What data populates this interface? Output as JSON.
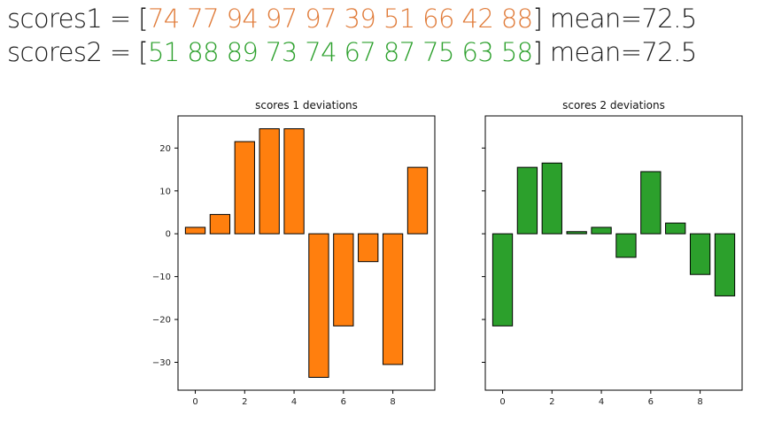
{
  "header": {
    "line1": {
      "prefix": "scores1 = [",
      "values_text": "74 77 94 97 97 39 51 66 42 88",
      "suffix": "] mean=72.5"
    },
    "line2": {
      "prefix": "scores2 = [",
      "values_text": "51 88 89 73 74 67 87 75 63 58",
      "suffix": "] mean=72.5"
    }
  },
  "colors": {
    "header_orange": "#e07b39",
    "header_green": "#2ca02c",
    "bar_orange": "#ff7f0e",
    "bar_green": "#2ca02c"
  },
  "chart_data": [
    {
      "type": "bar",
      "title": "scores 1 deviations",
      "x": [
        0,
        1,
        2,
        3,
        4,
        5,
        6,
        7,
        8,
        9
      ],
      "values": [
        1.5,
        4.5,
        21.5,
        24.5,
        24.5,
        -33.5,
        -21.5,
        -6.5,
        -30.5,
        15.5
      ],
      "xticks": [
        0,
        2,
        4,
        6,
        8
      ],
      "yticks": [
        20,
        10,
        0,
        -10,
        -20,
        -30
      ],
      "ytick_labels": [
        "20",
        "10",
        "0",
        "−10",
        "−20",
        "−30"
      ],
      "ylim": [
        -36.5,
        27.5
      ],
      "xlim": [
        -0.7,
        9.7
      ]
    },
    {
      "type": "bar",
      "title": "scores 2 deviations",
      "x": [
        0,
        1,
        2,
        3,
        4,
        5,
        6,
        7,
        8,
        9
      ],
      "values": [
        -21.5,
        15.5,
        16.5,
        0.5,
        1.5,
        -5.5,
        14.5,
        2.5,
        -9.5,
        -14.5
      ],
      "xticks": [
        0,
        2,
        4,
        6,
        8
      ],
      "sharey": true,
      "ylim": [
        -36.5,
        27.5
      ],
      "xlim": [
        -0.7,
        9.7
      ]
    }
  ]
}
